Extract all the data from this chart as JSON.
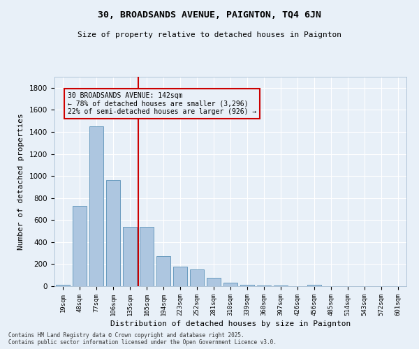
{
  "title1": "30, BROADSANDS AVENUE, PAIGNTON, TQ4 6JN",
  "title2": "Size of property relative to detached houses in Paignton",
  "xlabel": "Distribution of detached houses by size in Paignton",
  "ylabel": "Number of detached properties",
  "categories": [
    "19sqm",
    "48sqm",
    "77sqm",
    "106sqm",
    "135sqm",
    "165sqm",
    "194sqm",
    "223sqm",
    "252sqm",
    "281sqm",
    "310sqm",
    "339sqm",
    "368sqm",
    "397sqm",
    "426sqm",
    "456sqm",
    "485sqm",
    "514sqm",
    "543sqm",
    "572sqm",
    "601sqm"
  ],
  "values": [
    10,
    730,
    1450,
    960,
    540,
    540,
    270,
    175,
    150,
    75,
    30,
    10,
    8,
    5,
    3,
    15,
    2,
    1,
    1,
    1,
    1
  ],
  "bar_color": "#adc6e0",
  "bar_edge_color": "#6a9cbf",
  "vline_x": 4.5,
  "vline_color": "#cc0000",
  "annotation_title": "30 BROADSANDS AVENUE: 142sqm",
  "annotation_line1": "← 78% of detached houses are smaller (3,296)",
  "annotation_line2": "22% of semi-detached houses are larger (926) →",
  "annotation_box_color": "#cc0000",
  "ylim": [
    0,
    1900
  ],
  "yticks": [
    0,
    200,
    400,
    600,
    800,
    1000,
    1200,
    1400,
    1600,
    1800
  ],
  "bg_color": "#e8f0f8",
  "grid_color": "#ffffff",
  "footer1": "Contains HM Land Registry data © Crown copyright and database right 2025.",
  "footer2": "Contains public sector information licensed under the Open Government Licence v3.0."
}
